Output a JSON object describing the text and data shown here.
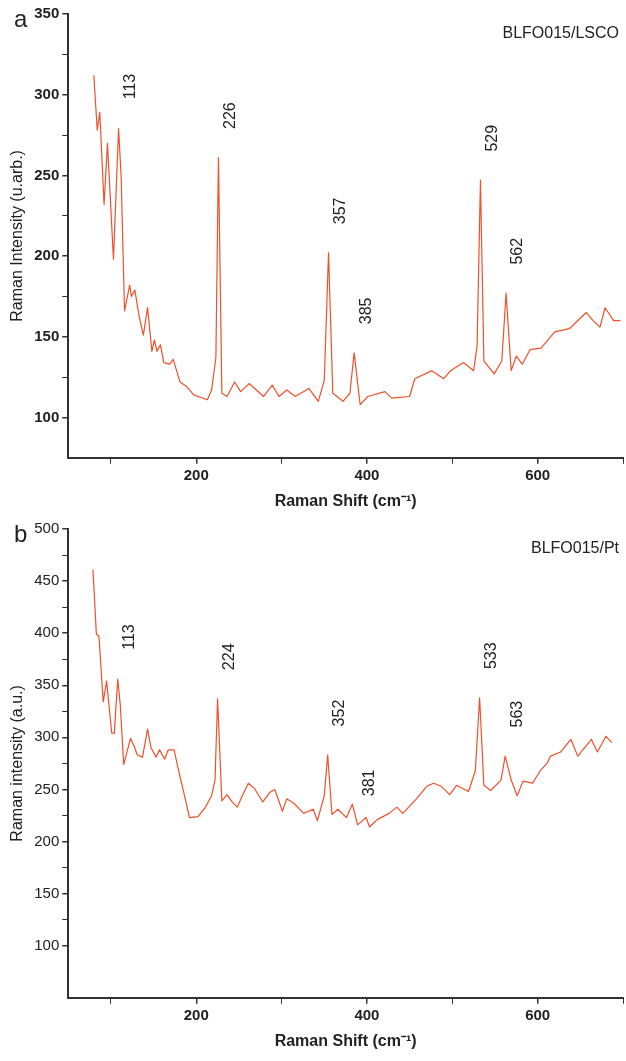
{
  "chart_data": [
    {
      "type": "line",
      "title": "a",
      "xlabel": "Raman Shift (cm⁻¹)",
      "ylabel": "Raman Intensity (u.arb.)",
      "xlim": [
        50,
        700
      ],
      "ylim": [
        75,
        350
      ],
      "xticks": [
        {
          "value": 100,
          "label": null
        },
        200,
        {
          "value": 300,
          "label": null
        },
        400,
        {
          "value": 500,
          "label": null
        },
        600,
        {
          "value": 700,
          "label": null
        }
      ],
      "yticks": [
        100,
        {
          "value": 125,
          "label": null
        },
        150,
        {
          "value": 175,
          "label": null
        },
        200,
        {
          "value": 225,
          "label": null
        },
        250,
        {
          "value": 275,
          "label": null
        },
        300,
        {
          "value": 325,
          "label": null
        },
        350
      ],
      "grid": false,
      "legend": false,
      "marker": "none",
      "line_style": "solid",
      "series": [
        {
          "color": "#f0502a",
          "x": [
            80,
            84,
            87,
            92,
            96,
            103,
            109,
            112,
            116,
            122,
            124,
            128,
            133,
            138,
            143,
            148,
            151,
            154,
            158,
            162,
            169,
            173,
            181,
            189,
            197,
            213,
            218,
            223,
            226,
            230,
            236,
            245,
            252,
            262,
            279,
            289,
            297,
            306,
            316,
            332,
            343,
            350,
            355,
            360,
            372,
            380,
            385,
            392,
            401,
            421,
            429,
            450,
            456,
            476,
            490,
            498,
            513,
            525,
            529,
            533,
            537,
            549,
            558,
            563,
            569,
            575,
            582,
            591,
            604,
            620,
            637,
            657,
            665,
            673,
            679,
            689,
            697
          ],
          "values": [
            312,
            278,
            289,
            232,
            270,
            198,
            279,
            249,
            166,
            182,
            175,
            179,
            163,
            151,
            168,
            141,
            148,
            141,
            145,
            134,
            133,
            136,
            122,
            119,
            114,
            111,
            117,
            137,
            261,
            115,
            113,
            122,
            116,
            121,
            113,
            120,
            113,
            117,
            113,
            118,
            110,
            123,
            202,
            115,
            110,
            115,
            140,
            108,
            113,
            116,
            112,
            113,
            124,
            129,
            124,
            129,
            134,
            129,
            144,
            247,
            135,
            127,
            135,
            177,
            129,
            138,
            133,
            142,
            143,
            153,
            155,
            165,
            160,
            156,
            168,
            160,
            160
          ]
        }
      ],
      "annotations": [
        "BLFO015/LSCO",
        {
          "text": "113",
          "x": 109,
          "y": 279
        },
        {
          "text": "226",
          "x": 226,
          "y": 261
        },
        {
          "text": "357",
          "x": 355,
          "y": 202
        },
        {
          "text": "385",
          "x": 385,
          "y": 140
        },
        {
          "text": "529",
          "x": 533,
          "y": 247
        },
        {
          "text": "562",
          "x": 563,
          "y": 177
        }
      ]
    },
    {
      "type": "line",
      "title": "b",
      "xlabel": "Raman Shift (cm⁻¹)",
      "ylabel": "Raman intensity (a.u.)",
      "xlim": [
        50,
        700
      ],
      "ylim": [
        50,
        500
      ],
      "xticks": [
        {
          "value": 100,
          "label": null
        },
        200,
        {
          "value": 300,
          "label": null
        },
        400,
        {
          "value": 500,
          "label": null
        },
        600,
        {
          "value": 700,
          "label": null
        }
      ],
      "yticks": [
        100,
        {
          "value": 125,
          "label": null
        },
        150,
        {
          "value": 175,
          "label": null
        },
        200,
        {
          "value": 225,
          "label": null
        },
        250,
        {
          "value": 275,
          "label": null
        },
        300,
        {
          "value": 325,
          "label": null
        },
        350,
        {
          "value": 375,
          "label": null
        },
        400,
        {
          "value": 425,
          "label": null
        },
        450,
        {
          "value": 475,
          "label": null
        },
        500
      ],
      "grid": false,
      "legend": false,
      "marker": "none",
      "line_style": "solid",
      "series": [
        {
          "color": "#f0502a",
          "x": [
            79,
            83,
            86,
            91,
            95,
            101,
            104,
            108,
            111,
            115,
            123,
            127,
            131,
            137,
            143,
            147,
            153,
            157,
            163,
            167,
            174,
            181,
            188,
            192,
            202,
            210,
            218,
            222,
            225,
            230,
            236,
            242,
            248,
            254,
            261,
            268,
            278,
            286,
            292,
            301,
            306,
            314,
            326,
            337,
            342,
            350,
            354,
            359,
            366,
            376,
            383,
            389,
            399,
            403,
            412,
            426,
            435,
            442,
            458,
            470,
            478,
            487,
            497,
            505,
            519,
            527,
            532,
            537,
            545,
            557,
            562,
            569,
            576,
            583,
            594,
            603,
            611,
            615,
            627,
            639,
            647,
            663,
            670,
            680,
            687
          ],
          "values": [
            461,
            399,
            397,
            334,
            354,
            304,
            304,
            356,
            331,
            274,
            299,
            292,
            283,
            281,
            308,
            290,
            281,
            288,
            279,
            288,
            288,
            262,
            238,
            223,
            224,
            232,
            244,
            259,
            337,
            239,
            245,
            238,
            233,
            244,
            256,
            251,
            238,
            247,
            250,
            229,
            241,
            237,
            227,
            231,
            220,
            244,
            283,
            226,
            231,
            223,
            236,
            216,
            223,
            214,
            221,
            227,
            233,
            227,
            241,
            253,
            256,
            253,
            245,
            254,
            248,
            268,
            338,
            254,
            249,
            259,
            282,
            259,
            244,
            258,
            256,
            268,
            275,
            282,
            286,
            298,
            282,
            298,
            286,
            301,
            295
          ]
        }
      ],
      "annotations": [
        "BLFO015/Pt",
        {
          "text": "113",
          "x": 108,
          "y": 356
        },
        {
          "text": "224",
          "x": 225,
          "y": 337
        },
        {
          "text": "352",
          "x": 354,
          "y": 283
        },
        {
          "text": "381",
          "x": 389,
          "y": 216
        },
        {
          "text": "533",
          "x": 532,
          "y": 338
        },
        {
          "text": "563",
          "x": 562,
          "y": 282
        }
      ]
    }
  ]
}
